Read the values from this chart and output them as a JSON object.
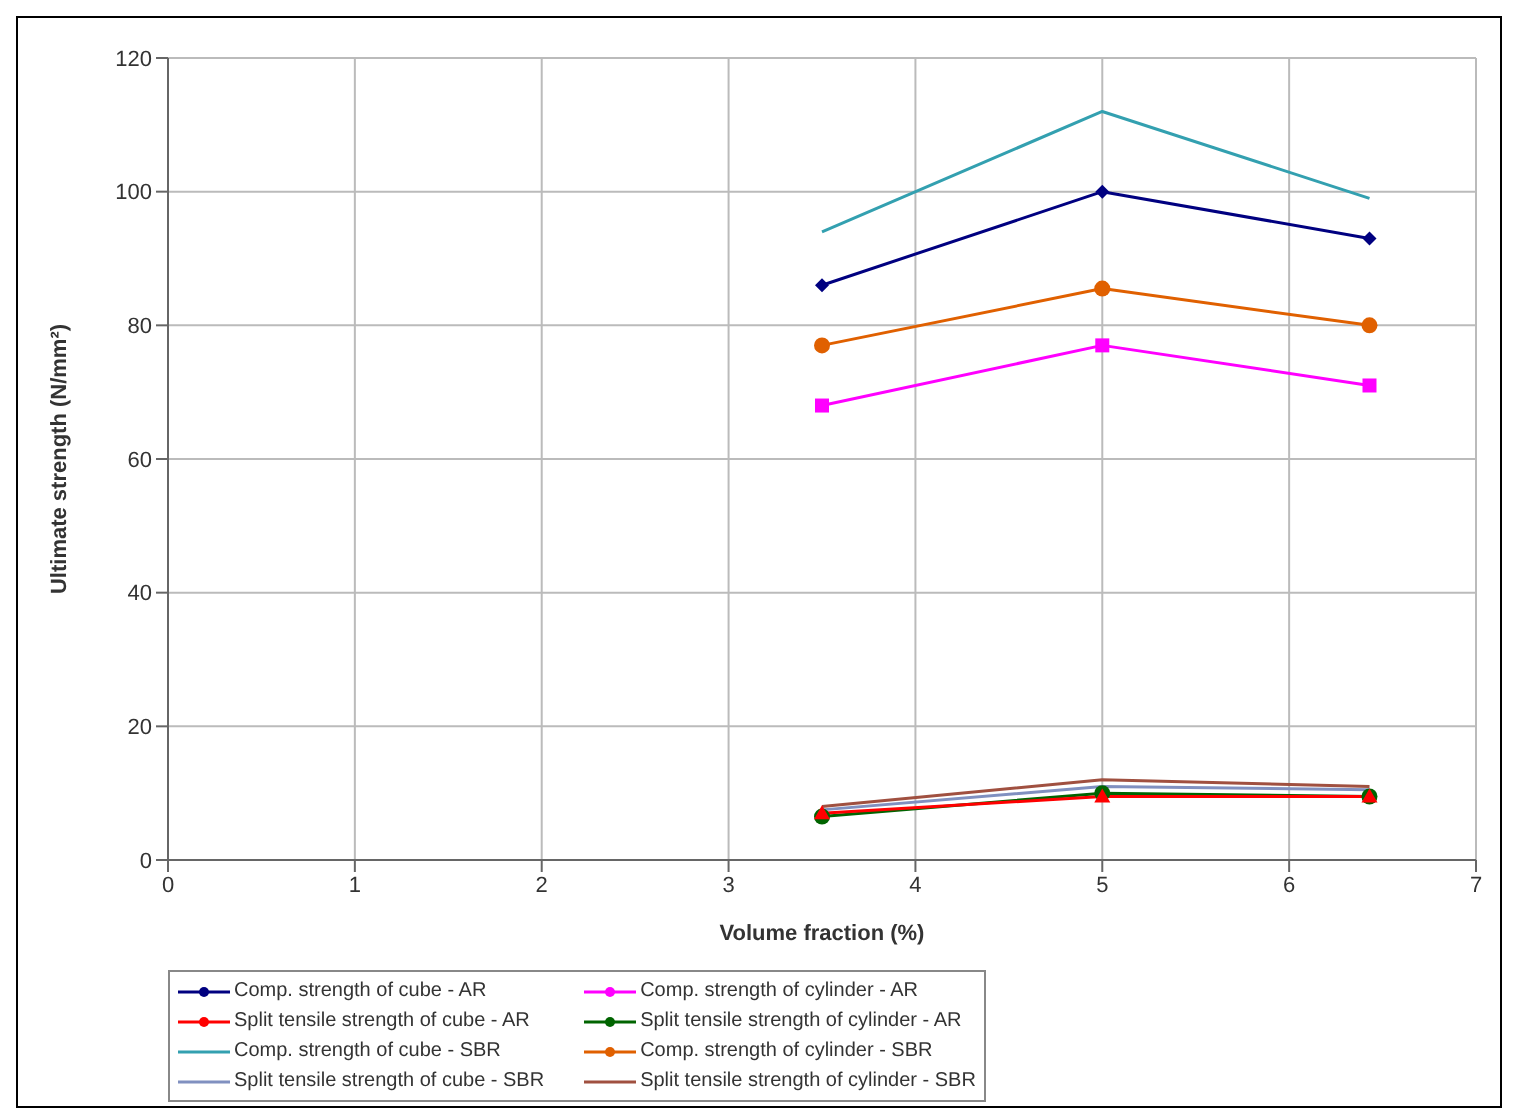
{
  "chart_data": {
    "type": "line",
    "xlabel": "Volume fraction (%)",
    "ylabel": "Ultimate strength (N/mm²)",
    "x": [
      3.5,
      5,
      6.43
    ],
    "xlim": [
      0,
      7
    ],
    "xticks": [
      0,
      1,
      2,
      3,
      4,
      5,
      6,
      7
    ],
    "ylim": [
      0,
      120
    ],
    "yticks": [
      0,
      20,
      40,
      60,
      80,
      100,
      120
    ],
    "grid": true,
    "legend": "bottom",
    "series": [
      {
        "name": "Comp. strength of cube - AR",
        "color": "#000080",
        "marker": "diamond",
        "values": [
          86,
          100,
          93
        ]
      },
      {
        "name": "Comp. strength of cylinder - AR",
        "color": "#ff00ff",
        "marker": "square",
        "values": [
          68,
          77,
          71
        ]
      },
      {
        "name": "Split tensile strength of cube - AR",
        "color": "#ff0000",
        "marker": "triangle",
        "values": [
          7,
          9.5,
          9.5
        ]
      },
      {
        "name": "Split tensile strength of cylinder - AR",
        "color": "#006400",
        "marker": "circle",
        "values": [
          6.5,
          10,
          9.5
        ]
      },
      {
        "name": "Comp. strength of cube - SBR",
        "color": "#33a0b0",
        "marker": "none",
        "values": [
          94,
          112,
          99
        ]
      },
      {
        "name": "Comp. strength of cylinder - SBR",
        "color": "#e06000",
        "marker": "circle",
        "values": [
          77,
          85.5,
          80
        ]
      },
      {
        "name": "Split tensile strength of cube - SBR",
        "color": "#8090c0",
        "marker": "none",
        "values": [
          7.5,
          11,
          10.5
        ]
      },
      {
        "name": "Split tensile strength of cylinder - SBR",
        "color": "#a05040",
        "marker": "none",
        "values": [
          8,
          12,
          11
        ]
      }
    ]
  }
}
